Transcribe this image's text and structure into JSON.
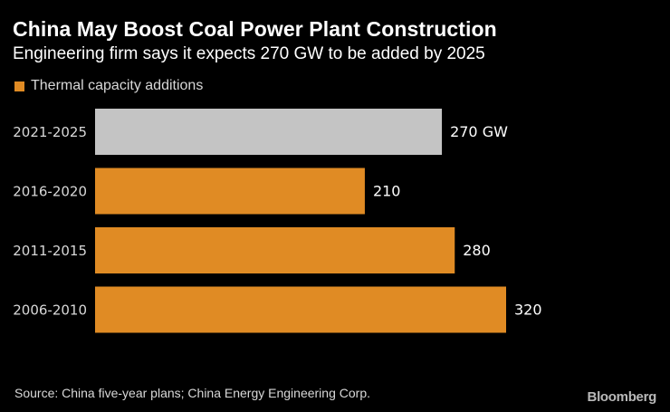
{
  "chart_data": {
    "type": "bar",
    "orientation": "horizontal",
    "title": "China May Boost Coal Power Plant Construction",
    "subtitle": "Engineering firm says it expects 270 GW to be added by 2025",
    "legend": [
      {
        "label": "Thermal capacity additions",
        "color": "#e08b24"
      }
    ],
    "categories": [
      "2021-2025",
      "2016-2020",
      "2011-2015",
      "2006-2010"
    ],
    "values": [
      270,
      210,
      280,
      320
    ],
    "value_labels": [
      "270 GW",
      "210",
      "280",
      "320"
    ],
    "bar_colors": [
      "#c4c4c4",
      "#e08b24",
      "#e08b24",
      "#e08b24"
    ],
    "unit": "GW",
    "xlim": [
      0,
      320
    ],
    "grid": false
  },
  "footer": {
    "source": "Source: China five-year plans; China Energy Engineering Corp.",
    "brand": "Bloomberg"
  },
  "colors": {
    "background": "#000000",
    "accent": "#e08b24",
    "projection": "#c4c4c4",
    "text": "#ffffff",
    "muted": "#d8d8d8"
  }
}
